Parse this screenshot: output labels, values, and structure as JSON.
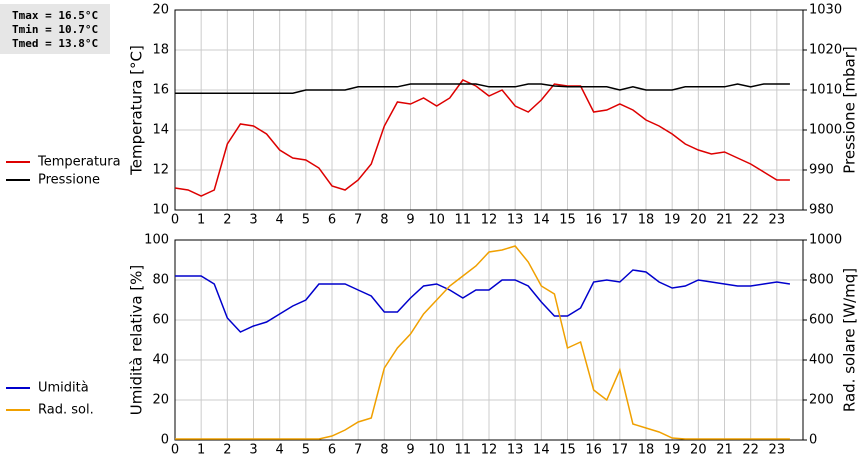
{
  "stats": [
    "Tmax = 16.5°C",
    "Tmin = 10.7°C",
    "Tmed = 13.8°C"
  ],
  "chart_data": [
    {
      "type": "line",
      "ylabel": "Temperatura [°C]",
      "y2label": "Pressione [mbar]",
      "xlim": [
        0,
        24
      ],
      "xticks": [
        0,
        1,
        2,
        3,
        4,
        5,
        6,
        7,
        8,
        9,
        10,
        11,
        12,
        13,
        14,
        15,
        16,
        17,
        18,
        19,
        20,
        21,
        22,
        23
      ],
      "ylim": [
        10,
        20
      ],
      "yticks": [
        10,
        12,
        14,
        16,
        18,
        20
      ],
      "y2lim": [
        980,
        1030
      ],
      "y2ticks": [
        980,
        990,
        1000,
        1010,
        1020,
        1030
      ],
      "grid": true,
      "x": [
        0,
        0.5,
        1,
        1.5,
        2,
        2.5,
        3,
        3.5,
        4,
        4.5,
        5,
        5.5,
        6,
        6.5,
        7,
        7.5,
        8,
        8.5,
        9,
        9.5,
        10,
        10.5,
        11,
        11.5,
        12,
        12.5,
        13,
        13.5,
        14,
        14.5,
        15,
        15.5,
        16,
        16.5,
        17,
        17.5,
        18,
        18.5,
        19,
        19.5,
        20,
        20.5,
        21,
        21.5,
        22,
        22.5,
        23,
        23.5
      ],
      "series": [
        {
          "name": "Temperatura",
          "color": "#dd0000",
          "axis": "y",
          "values": [
            11.1,
            11.0,
            10.7,
            11.0,
            13.3,
            14.3,
            14.2,
            13.8,
            13.0,
            12.6,
            12.5,
            12.1,
            11.2,
            11.0,
            11.5,
            12.3,
            14.2,
            15.4,
            15.3,
            15.6,
            15.2,
            15.6,
            16.5,
            16.2,
            15.7,
            16.0,
            15.2,
            14.9,
            15.5,
            16.3,
            16.2,
            16.2,
            14.9,
            15.0,
            15.3,
            15.0,
            14.5,
            14.2,
            13.8,
            13.3,
            13.0,
            12.8,
            12.9,
            12.6,
            12.3,
            11.9,
            11.5,
            11.5
          ]
        },
        {
          "name": "Pressione",
          "color": "#000000",
          "axis": "y2",
          "values": [
            1009.2,
            1009.2,
            1009.2,
            1009.2,
            1009.2,
            1009.2,
            1009.2,
            1009.2,
            1009.2,
            1009.2,
            1010,
            1010,
            1010,
            1010,
            1010.8,
            1010.8,
            1010.8,
            1010.8,
            1011.5,
            1011.5,
            1011.5,
            1011.5,
            1011.5,
            1011.5,
            1010.8,
            1010.8,
            1010.8,
            1011.5,
            1011.5,
            1011,
            1010.8,
            1010.8,
            1010.8,
            1010.8,
            1010,
            1010.8,
            1010,
            1010,
            1010,
            1010.8,
            1010.8,
            1010.8,
            1010.8,
            1011.5,
            1010.8,
            1011.5,
            1011.5,
            1011.5
          ]
        }
      ]
    },
    {
      "type": "line",
      "ylabel": "Umidità relativa [%]",
      "y2label": "Rad. solare [W/mq]",
      "xlim": [
        0,
        24
      ],
      "xticks": [
        0,
        1,
        2,
        3,
        4,
        5,
        6,
        7,
        8,
        9,
        10,
        11,
        12,
        13,
        14,
        15,
        16,
        17,
        18,
        19,
        20,
        21,
        22,
        23
      ],
      "ylim": [
        0,
        100
      ],
      "yticks": [
        0,
        20,
        40,
        60,
        80,
        100
      ],
      "y2lim": [
        0,
        1000
      ],
      "y2ticks": [
        0,
        200,
        400,
        600,
        800,
        1000
      ],
      "grid": true,
      "x": [
        0,
        0.5,
        1,
        1.5,
        2,
        2.5,
        3,
        3.5,
        4,
        4.5,
        5,
        5.5,
        6,
        6.5,
        7,
        7.5,
        8,
        8.5,
        9,
        9.5,
        10,
        10.5,
        11,
        11.5,
        12,
        12.5,
        13,
        13.5,
        14,
        14.5,
        15,
        15.5,
        16,
        16.5,
        17,
        17.5,
        18,
        18.5,
        19,
        19.5,
        20,
        20.5,
        21,
        21.5,
        22,
        22.5,
        23,
        23.5
      ],
      "series": [
        {
          "name": "Umidità",
          "color": "#0000cc",
          "axis": "y",
          "values": [
            82,
            82,
            82,
            78,
            61,
            54,
            57,
            59,
            63,
            67,
            70,
            78,
            78,
            78,
            75,
            72,
            64,
            64,
            71,
            77,
            78,
            75,
            71,
            75,
            75,
            80,
            80,
            77,
            69,
            62,
            62,
            66,
            79,
            80,
            79,
            85,
            84,
            79,
            76,
            77,
            80,
            79,
            78,
            77,
            77,
            78,
            79,
            78
          ]
        },
        {
          "name": "Rad. sol.",
          "color": "#f0a000",
          "axis": "y2",
          "values": [
            5,
            5,
            5,
            5,
            5,
            5,
            5,
            5,
            5,
            5,
            5,
            5,
            20,
            50,
            90,
            110,
            360,
            460,
            530,
            630,
            700,
            770,
            820,
            870,
            940,
            950,
            970,
            890,
            770,
            730,
            460,
            490,
            250,
            200,
            350,
            80,
            60,
            40,
            10,
            5,
            5,
            5,
            5,
            5,
            5,
            5,
            5,
            5
          ]
        }
      ]
    }
  ]
}
